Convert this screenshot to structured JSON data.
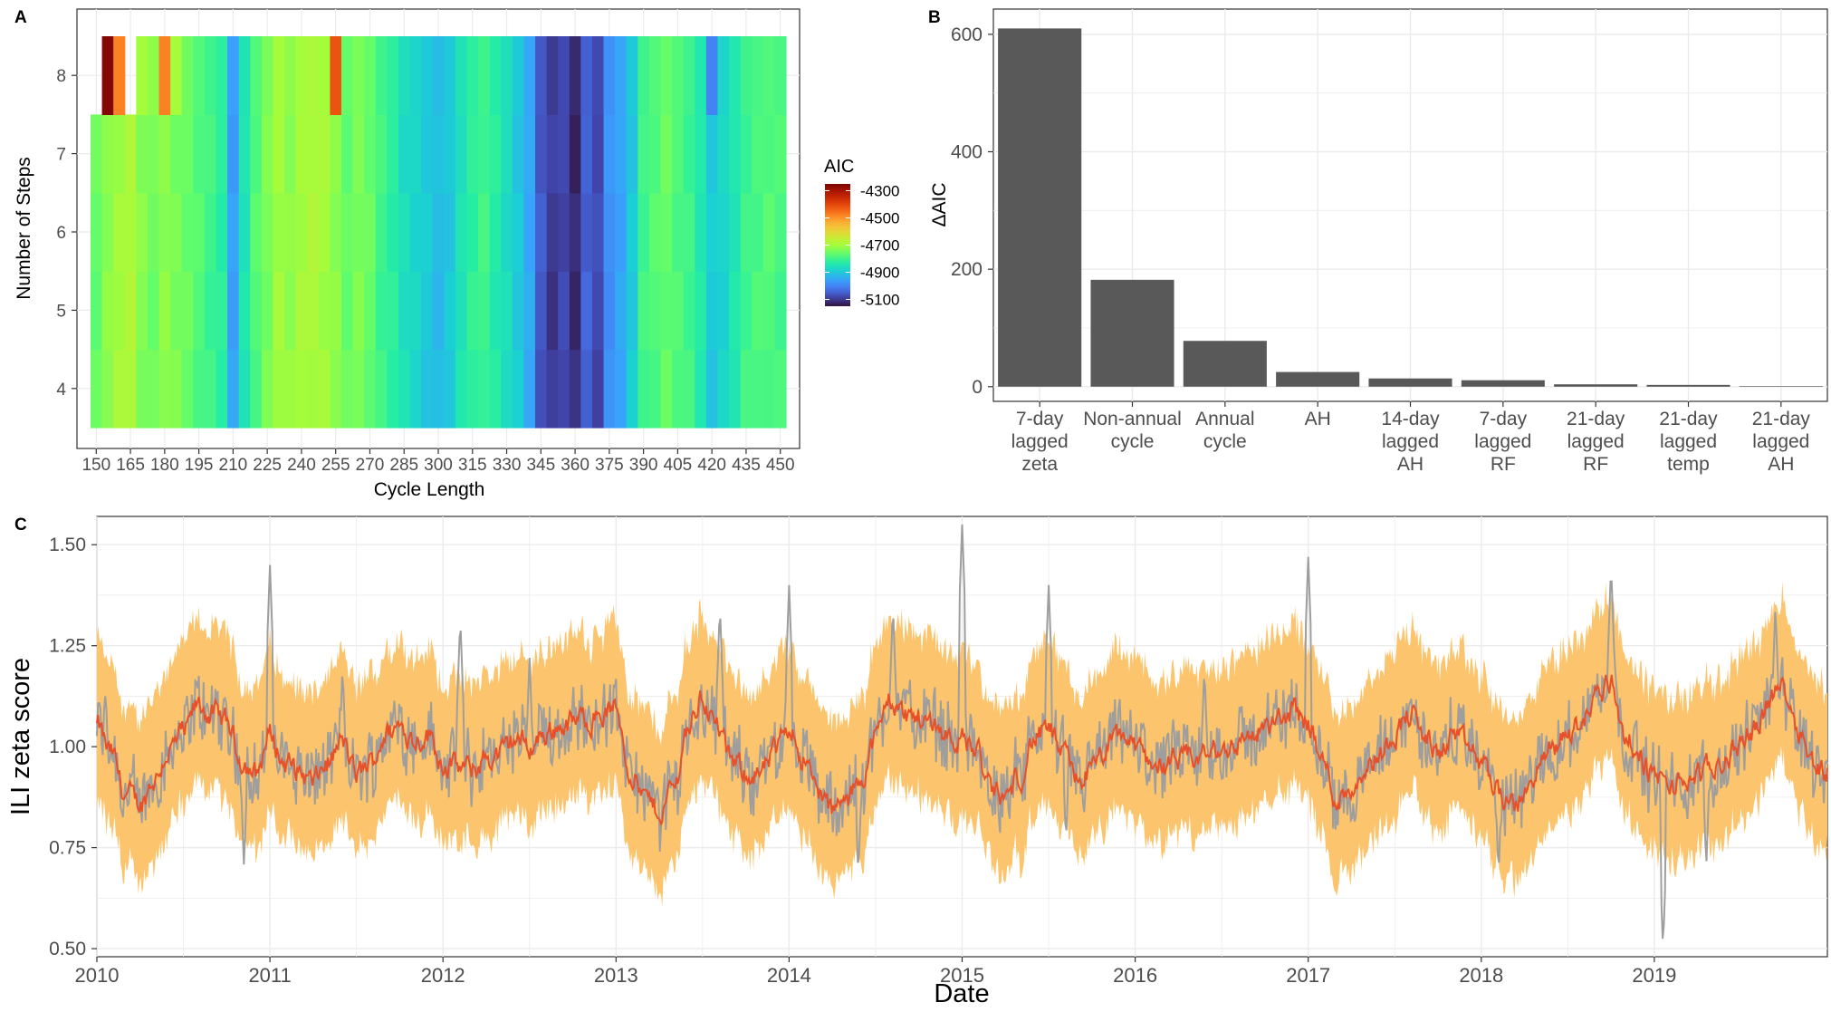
{
  "colors": {
    "panel_border": "#333333",
    "grid": "#ebebeb",
    "bar_fill": "#595959",
    "ribbon": "#fcc46c",
    "observed_line": "#9e9e9e",
    "fitted_line": "#e8502a",
    "turbo_scale": [
      "#30123b",
      "#4145ab",
      "#4675ed",
      "#39a2fc",
      "#1bcfd4",
      "#24eca6",
      "#61fc6c",
      "#a4fc3b",
      "#d1e834",
      "#f3c63a",
      "#fe9b2d",
      "#f36315",
      "#d93806",
      "#b11901",
      "#7a0403"
    ]
  },
  "panelA": {
    "label": "A",
    "xlabel": "Cycle Length",
    "ylabel": "Number of Steps",
    "xticks": [
      "150",
      "165",
      "180",
      "195",
      "210",
      "225",
      "240",
      "255",
      "270",
      "285",
      "300",
      "315",
      "330",
      "345",
      "360",
      "375",
      "390",
      "405",
      "420",
      "435",
      "450"
    ],
    "yticks": [
      "4",
      "5",
      "6",
      "7",
      "8"
    ],
    "legend": {
      "title": "AIC",
      "labels": [
        "-4300",
        "-4500",
        "-4700",
        "-4900",
        "-5100"
      ]
    }
  },
  "panelB": {
    "label": "B",
    "ylabel": "ΔAIC",
    "yticks": [
      "0",
      "200",
      "400",
      "600"
    ]
  },
  "panelC": {
    "label": "C",
    "xlabel": "Date",
    "ylabel": "ILI zeta score",
    "yticks": [
      "0.50",
      "0.75",
      "1.00",
      "1.25",
      "1.50"
    ],
    "xticks": [
      "2010",
      "2011",
      "2012",
      "2013",
      "2014",
      "2015",
      "2016",
      "2017",
      "2018",
      "2019"
    ]
  },
  "chart_data": [
    {
      "type": "heatmap",
      "title": "",
      "xlabel": "Cycle Length",
      "ylabel": "Number of Steps",
      "x_cycle_length": [
        150,
        155,
        160,
        165,
        170,
        175,
        180,
        185,
        190,
        195,
        200,
        205,
        210,
        215,
        220,
        225,
        230,
        235,
        240,
        245,
        250,
        255,
        260,
        265,
        270,
        275,
        280,
        285,
        290,
        295,
        300,
        305,
        310,
        315,
        320,
        325,
        330,
        335,
        340,
        345,
        350,
        355,
        360,
        365,
        370,
        375,
        380,
        385,
        390,
        395,
        400,
        405,
        410,
        415,
        420,
        425,
        430,
        435,
        440,
        445,
        450
      ],
      "y_steps": [
        4,
        5,
        6,
        7,
        8
      ],
      "value_label": "AIC",
      "color_range": [
        -5150,
        -4250
      ],
      "column_aic": [
        -4760,
        -4720,
        -4700,
        -4690,
        -4730,
        -4750,
        -4720,
        -4740,
        -4760,
        -4780,
        -4800,
        -4820,
        -4960,
        -4850,
        -4780,
        -4740,
        -4700,
        -4720,
        -4700,
        -4690,
        -4700,
        -4720,
        -4760,
        -4740,
        -4760,
        -4800,
        -4820,
        -4860,
        -4880,
        -4900,
        -4920,
        -4900,
        -4850,
        -4820,
        -4800,
        -4830,
        -4860,
        -4900,
        -4950,
        -5060,
        -5100,
        -5080,
        -5120,
        -5050,
        -5080,
        -4980,
        -4950,
        -4900,
        -4800,
        -4780,
        -4760,
        -4780,
        -4800,
        -4840,
        -4900,
        -4880,
        -4840,
        -4800,
        -4790,
        -4780,
        -4790
      ],
      "row8_aic": [
        null,
        -4260,
        -4480,
        null,
        -4700,
        -4720,
        -4480,
        -4700,
        -4750,
        -4780,
        -4800,
        -4820,
        -4960,
        -4850,
        -4780,
        -4740,
        -4700,
        -4720,
        -4700,
        -4690,
        -4700,
        -4420,
        -4760,
        -4740,
        -4760,
        -4800,
        -4820,
        -4860,
        -4880,
        -4900,
        -4920,
        -4900,
        -4850,
        -4820,
        -4800,
        -4830,
        -4860,
        -4900,
        -4950,
        -5060,
        -5100,
        -5080,
        -5120,
        -5050,
        -5080,
        -4980,
        -4950,
        -4900,
        -4800,
        -4780,
        -4760,
        -4780,
        -4800,
        -4840,
        -5000,
        -4880,
        -4840,
        -4800,
        -4790,
        -4780,
        -4790
      ],
      "legend_title": "AIC",
      "legend_labels": [
        -4300,
        -4500,
        -4700,
        -4900,
        -5100
      ]
    },
    {
      "type": "bar",
      "title": "",
      "xlabel": "",
      "ylabel": "ΔAIC",
      "categories": [
        "7-day\nlagged\nzeta",
        "Non-annual\ncycle",
        "Annual\ncycle",
        "AH",
        "14-day\nlagged\nAH",
        "7-day\nlagged\nRF",
        "21-day\nlagged\nRF",
        "21-day\nlagged\ntemp",
        "21-day\nlagged\nAH"
      ],
      "values": [
        610,
        182,
        78,
        25,
        14,
        11,
        4,
        3,
        1
      ],
      "ylim": [
        -25,
        643
      ]
    },
    {
      "type": "line",
      "title": "",
      "xlabel": "Date",
      "ylabel": "ILI zeta score",
      "xlim": [
        "2010-01-01",
        "2020-01-01"
      ],
      "ylim": [
        0.48,
        1.57
      ],
      "series": [
        {
          "role": "observed",
          "color": "#9e9e9e"
        },
        {
          "role": "fitted",
          "color": "#e8502a"
        },
        {
          "role": "interval",
          "color": "#fcc46c"
        }
      ],
      "monthly_fitted": [
        [
          2010.0,
          1.05
        ],
        [
          2010.083,
          0.98
        ],
        [
          2010.167,
          0.88
        ],
        [
          2010.25,
          0.86
        ],
        [
          2010.333,
          0.92
        ],
        [
          2010.417,
          0.99
        ],
        [
          2010.5,
          1.03
        ],
        [
          2010.583,
          1.1
        ],
        [
          2010.667,
          1.08
        ],
        [
          2010.75,
          1.06
        ],
        [
          2010.833,
          0.97
        ],
        [
          2010.917,
          0.93
        ],
        [
          2011.0,
          1.03
        ],
        [
          2011.083,
          0.96
        ],
        [
          2011.167,
          0.94
        ],
        [
          2011.25,
          0.91
        ],
        [
          2011.333,
          0.96
        ],
        [
          2011.417,
          1.01
        ],
        [
          2011.5,
          0.93
        ],
        [
          2011.583,
          0.96
        ],
        [
          2011.667,
          1.03
        ],
        [
          2011.75,
          1.05
        ],
        [
          2011.833,
          1.02
        ],
        [
          2011.917,
          1.03
        ],
        [
          2012.0,
          0.96
        ],
        [
          2012.083,
          0.95
        ],
        [
          2012.167,
          0.94
        ],
        [
          2012.25,
          0.97
        ],
        [
          2012.333,
          0.98
        ],
        [
          2012.417,
          1.02
        ],
        [
          2012.5,
          1.0
        ],
        [
          2012.583,
          1.03
        ],
        [
          2012.667,
          1.05
        ],
        [
          2012.75,
          1.06
        ],
        [
          2012.833,
          1.07
        ],
        [
          2012.917,
          1.08
        ],
        [
          2013.0,
          1.09
        ],
        [
          2013.083,
          0.94
        ],
        [
          2013.167,
          0.87
        ],
        [
          2013.25,
          0.84
        ],
        [
          2013.333,
          0.9
        ],
        [
          2013.417,
          1.05
        ],
        [
          2013.5,
          1.12
        ],
        [
          2013.583,
          1.05
        ],
        [
          2013.667,
          0.96
        ],
        [
          2013.75,
          0.94
        ],
        [
          2013.833,
          0.93
        ],
        [
          2013.917,
          0.98
        ],
        [
          2014.0,
          1.06
        ],
        [
          2014.083,
          0.97
        ],
        [
          2014.167,
          0.89
        ],
        [
          2014.25,
          0.84
        ],
        [
          2014.333,
          0.86
        ],
        [
          2014.417,
          0.93
        ],
        [
          2014.5,
          1.02
        ],
        [
          2014.583,
          1.12
        ],
        [
          2014.667,
          1.08
        ],
        [
          2014.75,
          1.07
        ],
        [
          2014.833,
          1.06
        ],
        [
          2014.917,
          1.03
        ],
        [
          2015.0,
          1.02
        ],
        [
          2015.083,
          0.99
        ],
        [
          2015.167,
          0.89
        ],
        [
          2015.25,
          0.87
        ],
        [
          2015.333,
          0.93
        ],
        [
          2015.417,
          1.02
        ],
        [
          2015.5,
          1.04
        ],
        [
          2015.583,
          0.98
        ],
        [
          2015.667,
          0.92
        ],
        [
          2015.75,
          0.94
        ],
        [
          2015.833,
          0.99
        ],
        [
          2015.917,
          1.03
        ],
        [
          2016.0,
          1.0
        ],
        [
          2016.083,
          0.97
        ],
        [
          2016.167,
          0.95
        ],
        [
          2016.25,
          0.96
        ],
        [
          2016.333,
          0.97
        ],
        [
          2016.417,
          0.98
        ],
        [
          2016.5,
          0.99
        ],
        [
          2016.583,
          1.01
        ],
        [
          2016.667,
          1.03
        ],
        [
          2016.75,
          1.04
        ],
        [
          2016.833,
          1.06
        ],
        [
          2016.917,
          1.09
        ],
        [
          2017.0,
          1.06
        ],
        [
          2017.083,
          0.96
        ],
        [
          2017.167,
          0.87
        ],
        [
          2017.25,
          0.9
        ],
        [
          2017.333,
          0.95
        ],
        [
          2017.417,
          0.98
        ],
        [
          2017.5,
          1.04
        ],
        [
          2017.583,
          1.08
        ],
        [
          2017.667,
          1.03
        ],
        [
          2017.75,
          0.98
        ],
        [
          2017.833,
          1.03
        ],
        [
          2017.917,
          1.0
        ],
        [
          2018.0,
          0.96
        ],
        [
          2018.083,
          0.9
        ],
        [
          2018.167,
          0.85
        ],
        [
          2018.25,
          0.88
        ],
        [
          2018.333,
          0.95
        ],
        [
          2018.417,
          1.0
        ],
        [
          2018.5,
          1.03
        ],
        [
          2018.583,
          1.06
        ],
        [
          2018.667,
          1.13
        ],
        [
          2018.75,
          1.16
        ],
        [
          2018.833,
          1.03
        ],
        [
          2018.917,
          0.96
        ],
        [
          2019.0,
          0.93
        ],
        [
          2019.083,
          0.9
        ],
        [
          2019.167,
          0.91
        ],
        [
          2019.25,
          0.93
        ],
        [
          2019.333,
          0.94
        ],
        [
          2019.417,
          0.97
        ],
        [
          2019.5,
          1.01
        ],
        [
          2019.583,
          1.05
        ],
        [
          2019.667,
          1.12
        ],
        [
          2019.75,
          1.15
        ],
        [
          2019.833,
          1.05
        ],
        [
          2019.917,
          0.96
        ],
        [
          2020.0,
          0.94
        ]
      ],
      "observed_peaks": [
        [
          2010.05,
          1.15
        ],
        [
          2011.0,
          1.45
        ],
        [
          2011.42,
          1.2
        ],
        [
          2012.1,
          1.32
        ],
        [
          2012.5,
          1.22
        ],
        [
          2013.6,
          1.35
        ],
        [
          2014.0,
          1.4
        ],
        [
          2014.6,
          1.35
        ],
        [
          2015.0,
          1.55
        ],
        [
          2015.5,
          1.4
        ],
        [
          2016.4,
          1.2
        ],
        [
          2017.0,
          1.47
        ],
        [
          2018.75,
          1.45
        ],
        [
          2019.7,
          1.35
        ]
      ],
      "observed_troughs": [
        [
          2010.85,
          0.7
        ],
        [
          2014.4,
          0.68
        ],
        [
          2015.6,
          0.76
        ],
        [
          2018.1,
          0.68
        ],
        [
          2019.05,
          0.5
        ],
        [
          2019.3,
          0.7
        ]
      ],
      "band_halfwidth": 0.19
    }
  ]
}
